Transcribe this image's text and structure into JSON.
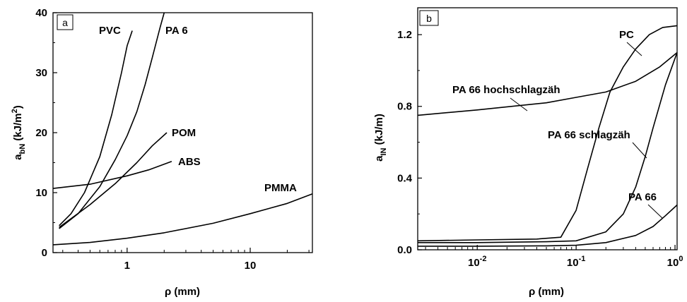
{
  "chart_data": [
    {
      "type": "line",
      "panel_label": "a",
      "xlabel": "ρ (mm)",
      "ylabel_main": "a",
      "ylabel_sub": "bN",
      "ylabel_rest": " (kJ/m",
      "ylabel_sup": "2",
      "ylabel_close": ")",
      "xscale": "log",
      "xlim": [
        0.25,
        32
      ],
      "ylim": [
        0,
        40
      ],
      "xticks": [
        1,
        10
      ],
      "xtick_labels": [
        "1",
        "10"
      ],
      "yticks": [
        0,
        10,
        20,
        30,
        40
      ],
      "ytick_labels": [
        "0",
        "10",
        "20",
        "30",
        "40"
      ],
      "series": [
        {
          "name": "PVC",
          "x": [
            0.28,
            0.35,
            0.45,
            0.6,
            0.75,
            0.9,
            1.0,
            1.1
          ],
          "y": [
            4.5,
            6.5,
            10.0,
            16.0,
            23.0,
            30.0,
            34.5,
            37.0
          ]
        },
        {
          "name": "PA 6",
          "x": [
            0.28,
            0.4,
            0.6,
            0.8,
            1.0,
            1.2,
            1.4,
            1.6,
            1.85,
            2.0
          ],
          "y": [
            4.0,
            6.5,
            11.0,
            15.5,
            19.5,
            23.5,
            28.0,
            32.5,
            37.5,
            40.0
          ]
        },
        {
          "name": "POM",
          "x": [
            0.28,
            0.5,
            0.8,
            1.2,
            1.6,
            2.1
          ],
          "y": [
            4.2,
            8.0,
            11.5,
            15.0,
            17.8,
            20.0
          ]
        },
        {
          "name": "ABS",
          "x": [
            0.25,
            0.5,
            1.0,
            1.5,
            2.3
          ],
          "y": [
            10.7,
            11.4,
            12.8,
            13.8,
            15.2
          ]
        },
        {
          "name": "PMMA",
          "x": [
            0.25,
            0.5,
            1.0,
            2.0,
            5.0,
            10.0,
            20.0,
            32.0
          ],
          "y": [
            1.3,
            1.7,
            2.4,
            3.3,
            4.9,
            6.5,
            8.2,
            9.8
          ]
        }
      ],
      "labels": [
        "PVC",
        "PA 6",
        "POM",
        "ABS",
        "PMMA"
      ]
    },
    {
      "type": "line",
      "panel_label": "b",
      "xlabel": "ρ (mm)",
      "ylabel_main": "a",
      "ylabel_sub": "IN",
      "ylabel_rest": " (kJ/m)",
      "xscale": "log",
      "xlim": [
        0.0025,
        1.05
      ],
      "ylim": [
        0,
        1.35
      ],
      "xticks": [
        0.01,
        0.1,
        1
      ],
      "xtick_base": "10",
      "xtick_exps": [
        "-2",
        "-1",
        "0"
      ],
      "yticks": [
        0.0,
        0.4,
        0.8,
        1.2
      ],
      "ytick_labels": [
        "0.0",
        "0.4",
        "0.8",
        "1.2"
      ],
      "series": [
        {
          "name": "PA 66 hochschlagzäh",
          "x": [
            0.0025,
            0.01,
            0.05,
            0.1,
            0.2,
            0.4,
            0.7,
            1.05
          ],
          "y": [
            0.75,
            0.78,
            0.82,
            0.85,
            0.88,
            0.94,
            1.02,
            1.1
          ]
        },
        {
          "name": "PC",
          "x": [
            0.0025,
            0.01,
            0.04,
            0.07,
            0.1,
            0.13,
            0.17,
            0.22,
            0.3,
            0.4,
            0.55,
            0.75,
            1.05
          ],
          "y": [
            0.05,
            0.055,
            0.06,
            0.07,
            0.22,
            0.45,
            0.68,
            0.88,
            1.02,
            1.12,
            1.2,
            1.24,
            1.25
          ]
        },
        {
          "name": "PA 66 schlagzäh",
          "x": [
            0.0025,
            0.01,
            0.05,
            0.1,
            0.2,
            0.3,
            0.4,
            0.5,
            0.6,
            0.8,
            1.05
          ],
          "y": [
            0.04,
            0.04,
            0.045,
            0.05,
            0.1,
            0.2,
            0.35,
            0.52,
            0.68,
            0.92,
            1.1
          ]
        },
        {
          "name": "PA 66",
          "x": [
            0.0025,
            0.01,
            0.05,
            0.1,
            0.2,
            0.4,
            0.6,
            0.8,
            1.05
          ],
          "y": [
            0.02,
            0.02,
            0.022,
            0.025,
            0.04,
            0.08,
            0.13,
            0.19,
            0.25
          ]
        }
      ],
      "labels": [
        "PA 66 hochschlagzäh",
        "PC",
        "PA 66 schlagzäh",
        "PA 66"
      ]
    }
  ]
}
